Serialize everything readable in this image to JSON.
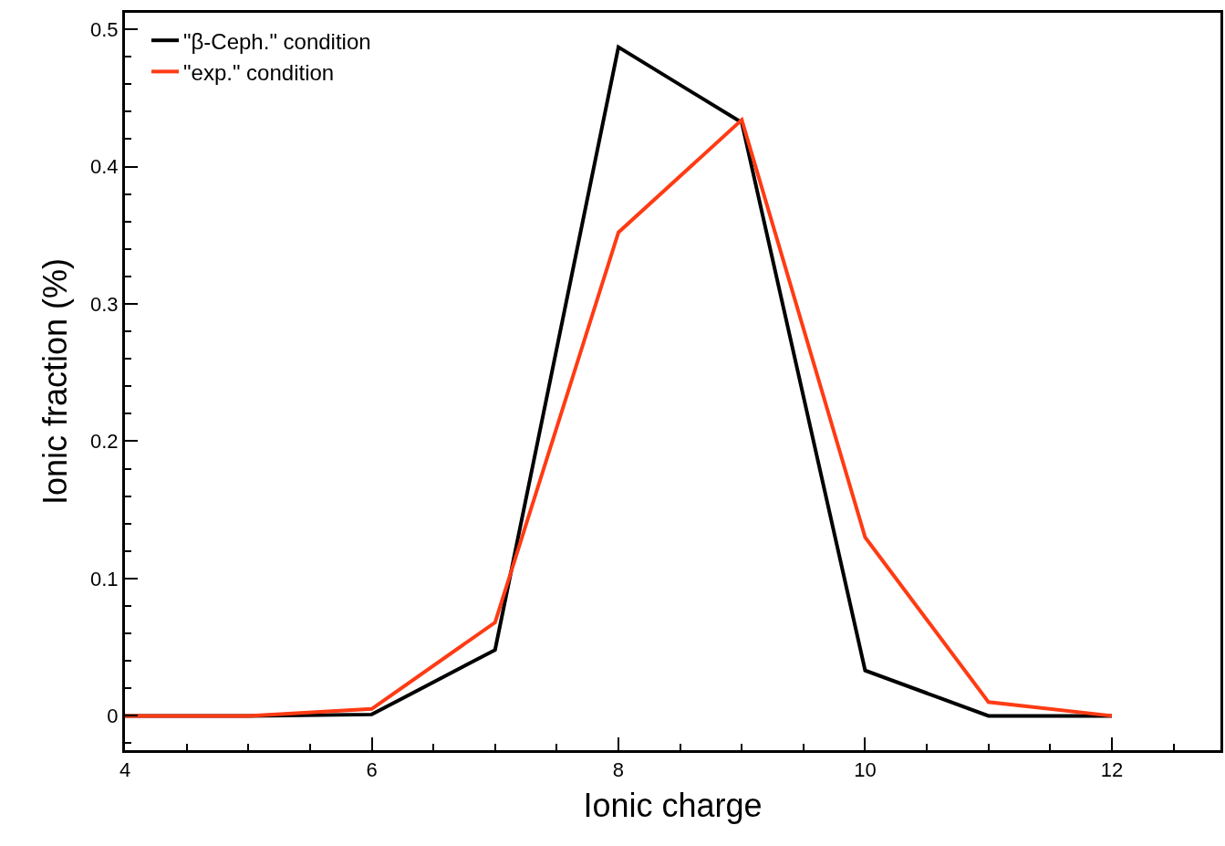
{
  "chart_data": {
    "type": "line",
    "xlabel": "Ionic charge",
    "ylabel": "Ionic fraction (%)",
    "x": [
      4,
      5,
      6,
      7,
      8,
      9,
      10,
      11,
      12
    ],
    "series": [
      {
        "name": "\"β-Ceph.\" condition",
        "color": "#000000",
        "values": [
          0,
          0,
          0.001,
          0.048,
          0.487,
          0.432,
          0.033,
          0,
          0
        ]
      },
      {
        "name": "\"exp.\" condition",
        "color": "#ff3b14",
        "values": [
          0,
          0,
          0.005,
          0.068,
          0.352,
          0.434,
          0.13,
          0.01,
          0
        ]
      }
    ],
    "xlim": [
      4,
      12.88
    ],
    "ylim": [
      -0.025,
      0.512
    ],
    "xticks": [
      4,
      6,
      8,
      10,
      12
    ],
    "yticks": [
      0,
      0.1,
      0.2,
      0.3,
      0.4,
      0.5
    ],
    "legend": "top left",
    "marker": "none",
    "line_style": "solid"
  }
}
